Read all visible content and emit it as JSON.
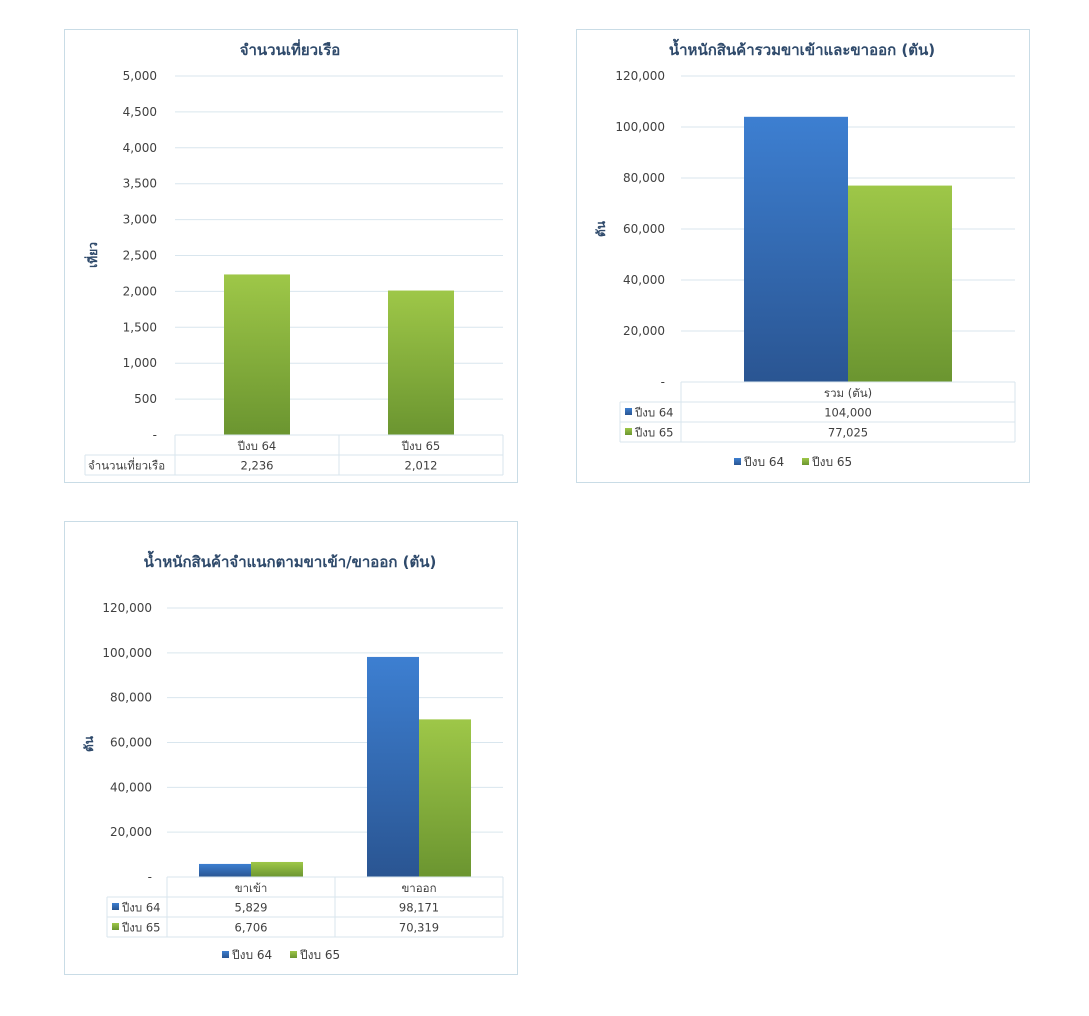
{
  "chart_data": [
    {
      "type": "bar",
      "title": "จำนวนเที่ยวเรือ",
      "ylabel": "เที่ยว",
      "categories": [
        "ปีงบ 64",
        "ปีงบ 65"
      ],
      "series": [
        {
          "name": "จำนวนเที่ยวเรือ",
          "values": [
            2236,
            2012
          ],
          "value_labels": [
            "2,236",
            "2,012"
          ],
          "color": "green"
        }
      ],
      "ylim": [
        0,
        5000
      ],
      "yticks": [
        "-",
        "500",
        "1,000",
        "1,500",
        "2,000",
        "2,500",
        "3,000",
        "3,500",
        "4,000",
        "4,500",
        "5,000"
      ],
      "grid": true,
      "data_table": true
    },
    {
      "type": "bar",
      "title": "น้ำหนักสินค้ารวมขาเข้าและขาออก (ตัน)",
      "ylabel": "ตัน",
      "categories": [
        "รวม (ตัน)"
      ],
      "series": [
        {
          "name": "ปีงบ 64",
          "values": [
            104000
          ],
          "value_labels": [
            "104,000"
          ],
          "color": "blue"
        },
        {
          "name": "ปีงบ 65",
          "values": [
            77025
          ],
          "value_labels": [
            "77,025"
          ],
          "color": "green"
        }
      ],
      "ylim": [
        0,
        120000
      ],
      "yticks": [
        "-",
        "20,000",
        "40,000",
        "60,000",
        "80,000",
        "100,000",
        "120,000"
      ],
      "grid": true,
      "data_table": true,
      "legend": "bottom"
    },
    {
      "type": "bar",
      "title": "น้ำหนักสินค้าจำแนกตามขาเข้า/ขาออก (ตัน)",
      "ylabel": "ตัน",
      "categories": [
        "ขาเข้า",
        "ขาออก"
      ],
      "series": [
        {
          "name": "ปีงบ 64",
          "values": [
            5829,
            98171
          ],
          "value_labels": [
            "5,829",
            "98,171"
          ],
          "color": "blue"
        },
        {
          "name": "ปีงบ 65",
          "values": [
            6706,
            70319
          ],
          "value_labels": [
            "6,706",
            "70,319"
          ],
          "color": "green"
        }
      ],
      "ylim": [
        0,
        120000
      ],
      "yticks": [
        "-",
        "20,000",
        "40,000",
        "60,000",
        "80,000",
        "100,000",
        "120,000"
      ],
      "grid": true,
      "data_table": true,
      "legend": "bottom"
    }
  ],
  "colors": {
    "blue_top": "#3d7fd1",
    "blue_bottom": "#2a5592",
    "green_top": "#9ec748",
    "green_bottom": "#6b9530",
    "grid": "#d9e6ee",
    "title": "#2f4a6b"
  }
}
